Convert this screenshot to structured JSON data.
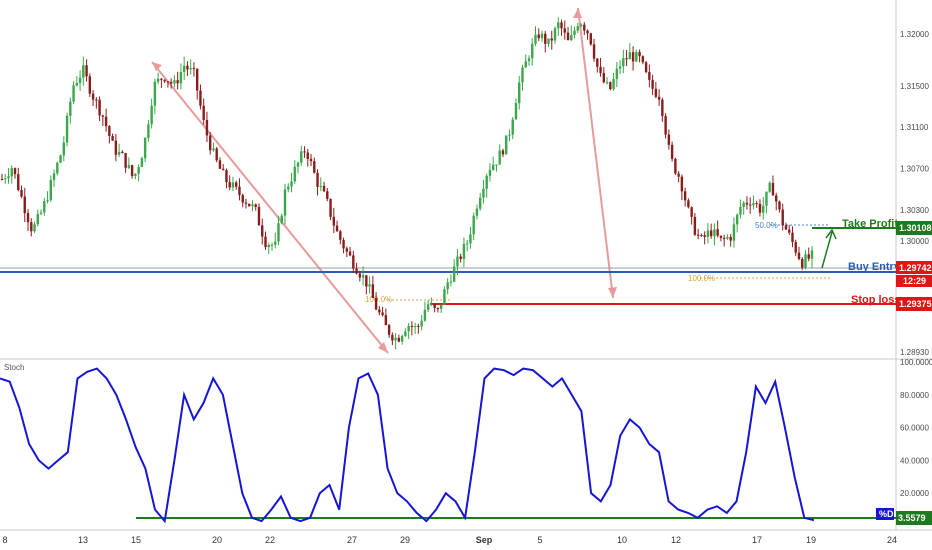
{
  "chart_data": [
    {
      "type": "candlestick",
      "y_ticks": [
        1.32,
        1.315,
        1.311,
        1.307,
        1.303,
        1.3,
        1.2893
      ],
      "y_tick_labels": [
        "1.32000",
        "1.31500",
        "1.31100",
        "1.30700",
        "1.30300",
        "1.30000",
        "1.28930"
      ],
      "x_tick_labels": [
        "8",
        "13",
        "15",
        "20",
        "22",
        "27",
        "29",
        "Sep",
        "5",
        "10",
        "12",
        "17",
        "19",
        "24"
      ],
      "take_profit": {
        "label": "Take Profit",
        "value_label": "1.30108",
        "value": 1.30108,
        "color": "#1e7a1e"
      },
      "buy_entry": {
        "label": "Buy Entry",
        "value_label": "1.29742",
        "value": 1.29742,
        "color": "#2a5db0",
        "sub_label": "12:29"
      },
      "stop_loss": {
        "label": "Stop loss",
        "value_label": "1.29375",
        "value": 1.29375,
        "color": "#e01515"
      },
      "fib_labels": {
        "fib_50": "50.0%",
        "fib_100_left": "100.0%",
        "fib_100_right": "100.0%"
      },
      "price_path": [
        1.306,
        1.3072,
        1.304,
        1.301,
        1.303,
        1.306,
        1.309,
        1.315,
        1.3165,
        1.314,
        1.312,
        1.309,
        1.308,
        1.306,
        1.309,
        1.315,
        1.316,
        1.315,
        1.317,
        1.316,
        1.311,
        1.308,
        1.306,
        1.305,
        1.304,
        1.303,
        1.3,
        1.2995,
        1.305,
        1.307,
        1.309,
        1.306,
        1.304,
        1.301,
        1.299,
        1.2975,
        1.296,
        1.2935,
        1.2915,
        1.2905,
        1.292,
        1.2915,
        1.294,
        1.293,
        1.296,
        1.298,
        1.3,
        1.304,
        1.307,
        1.308,
        1.31,
        1.315,
        1.318,
        1.32,
        1.319,
        1.321,
        1.319,
        1.3215,
        1.32,
        1.316,
        1.3145,
        1.317,
        1.318,
        1.3175,
        1.315,
        1.314,
        1.308,
        1.306,
        1.302,
        1.3,
        1.301,
        1.3,
        1.3005,
        1.3035,
        1.304,
        1.303,
        1.3055,
        1.302,
        1.3,
        1.298,
        1.2985
      ]
    },
    {
      "type": "line",
      "title": "Stoch",
      "y_ticks": [
        100,
        80,
        60,
        40,
        20
      ],
      "y_tick_labels": [
        "100.0000",
        "80.0000",
        "60.0000",
        "40.0000",
        "20.0000"
      ],
      "current_label": "%D",
      "current_value_label": "3.5579",
      "current_value": 3.5579,
      "series": [
        {
          "values": [
            90,
            88,
            72,
            50,
            40,
            35,
            40,
            45,
            90,
            94,
            96,
            90,
            80,
            65,
            48,
            35,
            10,
            3,
            40,
            80,
            65,
            75,
            90,
            80,
            50,
            20,
            5,
            3,
            10,
            18,
            5,
            3,
            5,
            20,
            25,
            10,
            60,
            90,
            93,
            80,
            35,
            20,
            15,
            8,
            3,
            10,
            20,
            15,
            5,
            45,
            90,
            96,
            95,
            92,
            96,
            95,
            90,
            85,
            90,
            80,
            70,
            20,
            15,
            25,
            55,
            65,
            60,
            50,
            45,
            15,
            10,
            8,
            5,
            10,
            12,
            8,
            15,
            45,
            85,
            75,
            88,
            60,
            30,
            5,
            3.5579
          ]
        }
      ]
    }
  ]
}
